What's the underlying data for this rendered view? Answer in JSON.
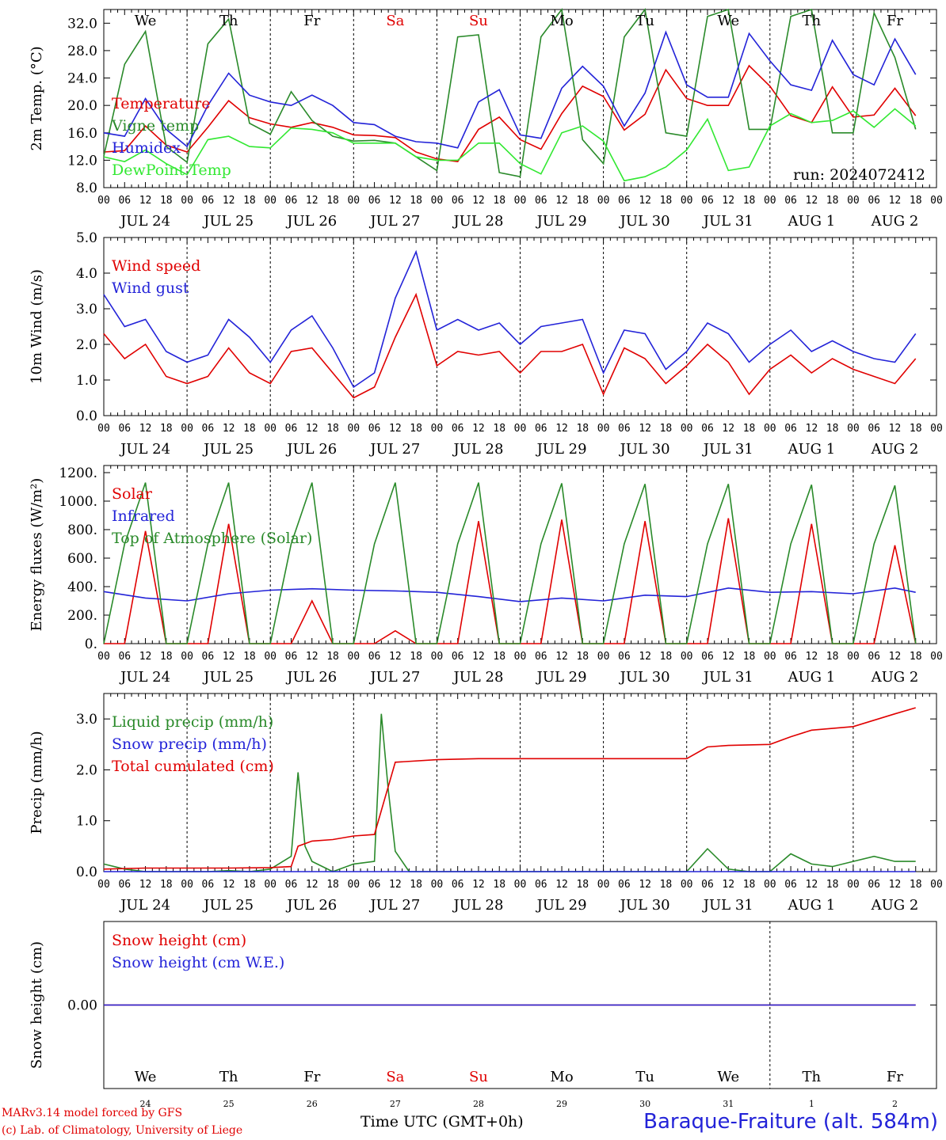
{
  "run_label": "run: 2024072412",
  "day_names": [
    "We",
    "Th",
    "Fr",
    "Sa",
    "Su",
    "Mo",
    "Tu",
    "We",
    "Th",
    "Fr"
  ],
  "day_numbers": [
    "24",
    "25",
    "26",
    "27",
    "28",
    "29",
    "30",
    "31",
    "1",
    "2"
  ],
  "date_labels": [
    "JUL 24",
    "JUL 25",
    "JUL 26",
    "JUL 27",
    "JUL 28",
    "JUL 29",
    "JUL 30",
    "JUL 31",
    "AUG  1",
    "AUG  2"
  ],
  "hour_ticks": [
    "00",
    "06",
    "12",
    "18"
  ],
  "weekend_color": "#e00000",
  "footer": {
    "model": "MARv3.14 model forced by GFS",
    "lab": "(c) Lab. of Climatology, University of Liege",
    "time_label": "Time UTC (GMT+0h)",
    "station": "Baraque-Fraiture (alt. 584m)"
  },
  "chart_data": [
    {
      "type": "line",
      "ylabel": "2m Temp. (°C)",
      "ylim": [
        8,
        34
      ],
      "yticks": [
        "8.0",
        "12.0",
        "16.0",
        "20.0",
        "24.0",
        "28.0",
        "32.0"
      ],
      "grid": false,
      "legend_position": "left",
      "x_unit": "hours since Jul 24 00 UTC",
      "series": [
        {
          "name": "Temperature",
          "color": "#e00000",
          "x": [
            0,
            6,
            12,
            18,
            24,
            30,
            36,
            42,
            48,
            54,
            60,
            66,
            72,
            78,
            84,
            90,
            96,
            102,
            108,
            114,
            120,
            126,
            132,
            138,
            144,
            150,
            156,
            162,
            168,
            174,
            180,
            186,
            192,
            198,
            204,
            210,
            216,
            222,
            228,
            234
          ],
          "values": [
            13.2,
            13.4,
            17,
            14.2,
            13.2,
            16.8,
            20.7,
            18.2,
            17.3,
            16.8,
            17.5,
            16.8,
            15.7,
            15.6,
            15.3,
            13.2,
            12.2,
            11.8,
            16.5,
            18.3,
            15,
            13.6,
            18.8,
            22.8,
            21.3,
            16.4,
            18.7,
            25.2,
            21,
            20,
            20,
            25.8,
            22.8,
            18.5,
            17.5,
            22.7,
            18.3,
            18.6,
            22.5,
            18.5
          ]
        },
        {
          "name": "Vigne temp",
          "color": "#2a8a2a",
          "x": [
            0,
            6,
            12,
            18,
            24,
            30,
            36,
            42,
            48,
            54,
            60,
            66,
            72,
            78,
            84,
            90,
            96,
            102,
            108,
            114,
            120,
            126,
            132,
            138,
            144,
            150,
            156,
            162,
            168,
            174,
            180,
            186,
            192,
            198,
            204,
            210,
            216,
            222,
            228,
            234
          ],
          "values": [
            12.6,
            26,
            30.8,
            14,
            11.7,
            29,
            32.6,
            17.4,
            15.8,
            22,
            17.8,
            15.5,
            14.8,
            14.9,
            14.5,
            12.5,
            10.5,
            30,
            30.3,
            10.2,
            9.6,
            30,
            34,
            15,
            11.5,
            30,
            34,
            16,
            15.5,
            33,
            34,
            16.5,
            16.5,
            33,
            34,
            16,
            16,
            33.5,
            27,
            16.5
          ]
        },
        {
          "name": "Humidex",
          "color": "#2323d8",
          "x": [
            0,
            6,
            12,
            18,
            24,
            30,
            36,
            42,
            48,
            54,
            60,
            66,
            72,
            78,
            84,
            90,
            96,
            102,
            108,
            114,
            120,
            126,
            132,
            138,
            144,
            150,
            156,
            162,
            168,
            174,
            180,
            186,
            192,
            198,
            204,
            210,
            216,
            222,
            228,
            234
          ],
          "values": [
            16,
            15.5,
            21,
            16.5,
            14,
            20,
            24.7,
            21.5,
            20.5,
            20,
            21.5,
            20,
            17.5,
            17.2,
            15.5,
            14.7,
            14.5,
            13.8,
            20.5,
            22.3,
            15.7,
            15.2,
            22.5,
            25.7,
            22.8,
            17,
            21.8,
            30.7,
            23,
            21.2,
            21.2,
            30.5,
            26.5,
            23,
            22.2,
            29.5,
            24.5,
            23,
            29.7,
            24.5
          ]
        },
        {
          "name": "DewPoint Temp",
          "color": "#32e832",
          "x": [
            0,
            6,
            12,
            18,
            24,
            30,
            36,
            42,
            48,
            54,
            60,
            66,
            72,
            78,
            84,
            90,
            96,
            102,
            108,
            114,
            120,
            126,
            132,
            138,
            144,
            150,
            156,
            162,
            168,
            174,
            180,
            186,
            192,
            198,
            204,
            210,
            216,
            222,
            228,
            234
          ],
          "values": [
            12.5,
            11.8,
            13.5,
            11.5,
            9.9,
            15,
            15.5,
            14,
            13.8,
            16.7,
            16.5,
            16,
            14.5,
            14.5,
            14.5,
            12.5,
            12,
            12,
            14.5,
            14.5,
            11.5,
            10,
            16,
            17,
            14.8,
            9,
            9.6,
            11,
            13.5,
            18,
            10.5,
            11,
            17,
            18.8,
            17.5,
            17.8,
            19.2,
            16.8,
            19.5,
            17
          ]
        }
      ]
    },
    {
      "type": "line",
      "ylabel": "10m Wind (m/s)",
      "ylim": [
        0,
        5
      ],
      "yticks": [
        "0.0",
        "1.0",
        "2.0",
        "3.0",
        "4.0",
        "5.0"
      ],
      "grid": false,
      "legend_position": "left",
      "series": [
        {
          "name": "Wind speed",
          "color": "#e00000",
          "x": [
            0,
            6,
            12,
            18,
            24,
            30,
            36,
            42,
            48,
            54,
            60,
            66,
            72,
            78,
            84,
            90,
            96,
            102,
            108,
            114,
            120,
            126,
            132,
            138,
            144,
            150,
            156,
            162,
            168,
            174,
            180,
            186,
            192,
            198,
            204,
            210,
            216,
            222,
            228,
            234
          ],
          "values": [
            2.3,
            1.6,
            2,
            1.1,
            0.9,
            1.1,
            1.9,
            1.2,
            0.9,
            1.8,
            1.9,
            1.2,
            0.5,
            0.8,
            2.2,
            3.4,
            1.4,
            1.8,
            1.7,
            1.8,
            1.2,
            1.8,
            1.8,
            2,
            0.6,
            1.9,
            1.6,
            0.9,
            1.4,
            2,
            1.5,
            0.6,
            1.3,
            1.7,
            1.2,
            1.6,
            1.3,
            1.1,
            0.9,
            1.6
          ]
        },
        {
          "name": "Wind gust",
          "color": "#2323d8",
          "x": [
            0,
            6,
            12,
            18,
            24,
            30,
            36,
            42,
            48,
            54,
            60,
            66,
            72,
            78,
            84,
            90,
            96,
            102,
            108,
            114,
            120,
            126,
            132,
            138,
            144,
            150,
            156,
            162,
            168,
            174,
            180,
            186,
            192,
            198,
            204,
            210,
            216,
            222,
            228,
            234
          ],
          "values": [
            3.4,
            2.5,
            2.7,
            1.8,
            1.5,
            1.7,
            2.7,
            2.2,
            1.5,
            2.4,
            2.8,
            1.9,
            0.8,
            1.2,
            3.3,
            4.6,
            2.4,
            2.7,
            2.4,
            2.6,
            2,
            2.5,
            2.6,
            2.7,
            1.2,
            2.4,
            2.3,
            1.3,
            1.8,
            2.6,
            2.3,
            1.5,
            2,
            2.4,
            1.8,
            2.1,
            1.8,
            1.6,
            1.5,
            2.3
          ]
        }
      ]
    },
    {
      "type": "line",
      "ylabel": "Energy fluxes (W/m²)",
      "ylim": [
        0,
        1250
      ],
      "yticks": [
        "0.",
        "200.",
        "400.",
        "600.",
        "800.",
        "1000.",
        "1200."
      ],
      "grid": false,
      "legend_position": "left",
      "series": [
        {
          "name": "Solar",
          "color": "#e00000",
          "x": [
            0,
            6,
            12,
            18,
            24,
            30,
            36,
            42,
            48,
            54,
            60,
            66,
            72,
            78,
            84,
            90,
            96,
            102,
            108,
            114,
            120,
            126,
            132,
            138,
            144,
            150,
            156,
            162,
            168,
            174,
            180,
            186,
            192,
            198,
            204,
            210,
            216,
            222,
            228,
            234
          ],
          "values": [
            0,
            0,
            790,
            0,
            0,
            0,
            840,
            0,
            0,
            0,
            300,
            0,
            0,
            0,
            90,
            0,
            0,
            0,
            860,
            0,
            0,
            0,
            870,
            0,
            0,
            0,
            860,
            0,
            0,
            0,
            880,
            0,
            0,
            0,
            840,
            0,
            0,
            0,
            690,
            0
          ]
        },
        {
          "name": "Infrared",
          "color": "#2323d8",
          "x": [
            0,
            12,
            24,
            36,
            48,
            60,
            72,
            84,
            96,
            108,
            120,
            132,
            144,
            156,
            168,
            180,
            192,
            204,
            216,
            228,
            234
          ],
          "values": [
            365,
            320,
            300,
            350,
            375,
            385,
            375,
            370,
            360,
            330,
            295,
            320,
            300,
            340,
            330,
            390,
            360,
            365,
            350,
            390,
            360
          ]
        },
        {
          "name": "Top of Atmosphere (Solar)",
          "color": "#2a8a2a",
          "x": [
            0,
            6,
            12,
            18,
            24,
            30,
            36,
            42,
            48,
            54,
            60,
            66,
            72,
            78,
            84,
            90,
            96,
            102,
            108,
            114,
            120,
            126,
            132,
            138,
            144,
            150,
            156,
            162,
            168,
            174,
            180,
            186,
            192,
            198,
            204,
            210,
            216,
            222,
            228,
            234
          ],
          "values": [
            0,
            700,
            1130,
            0,
            0,
            700,
            1130,
            0,
            0,
            700,
            1130,
            0,
            0,
            700,
            1130,
            0,
            0,
            700,
            1130,
            0,
            0,
            700,
            1125,
            0,
            0,
            700,
            1120,
            0,
            0,
            700,
            1120,
            0,
            0,
            700,
            1115,
            0,
            0,
            700,
            1110,
            0
          ]
        }
      ]
    },
    {
      "type": "line",
      "ylabel": "Precip (mm/h)",
      "ylim": [
        0,
        3.5
      ],
      "yticks": [
        "0.0",
        "1.0",
        "2.0",
        "3.0"
      ],
      "grid": false,
      "legend_position": "left",
      "series": [
        {
          "name": "Liquid precip (mm/h)",
          "color": "#2a8a2a",
          "x": [
            0,
            6,
            12,
            18,
            24,
            30,
            36,
            42,
            48,
            54,
            56,
            58,
            60,
            66,
            72,
            78,
            80,
            82,
            84,
            88,
            96,
            102,
            108,
            114,
            120,
            126,
            132,
            138,
            144,
            150,
            156,
            162,
            168,
            174,
            180,
            186,
            192,
            198,
            204,
            210,
            216,
            222,
            228,
            234
          ],
          "values": [
            0.15,
            0.05,
            0,
            0,
            0,
            0,
            0.02,
            0,
            0.05,
            0.3,
            1.95,
            0.5,
            0.2,
            0,
            0.15,
            0.2,
            3.1,
            1.6,
            0.4,
            0,
            0,
            0,
            0,
            0,
            0,
            0,
            0,
            0,
            0,
            0,
            0,
            0,
            0,
            0.45,
            0.05,
            0,
            0,
            0.35,
            0.15,
            0.1,
            0.2,
            0.3,
            0.2,
            0.2
          ]
        },
        {
          "name": "Snow precip (mm/h)",
          "color": "#2323d8",
          "x": [
            0,
            234
          ],
          "values": [
            0,
            0
          ]
        },
        {
          "name": "Total cumulated (cm)",
          "color": "#e00000",
          "x": [
            0,
            12,
            24,
            36,
            48,
            54,
            56,
            60,
            66,
            72,
            78,
            80,
            84,
            96,
            108,
            132,
            156,
            168,
            174,
            180,
            192,
            198,
            204,
            216,
            228,
            234
          ],
          "values": [
            0.05,
            0.07,
            0.07,
            0.07,
            0.08,
            0.1,
            0.5,
            0.6,
            0.63,
            0.7,
            0.73,
            1.2,
            2.15,
            2.2,
            2.22,
            2.22,
            2.22,
            2.22,
            2.45,
            2.48,
            2.5,
            2.65,
            2.78,
            2.85,
            3.1,
            3.22
          ]
        }
      ]
    },
    {
      "type": "line",
      "ylabel": "Snow height (cm)",
      "ylim": [
        -1,
        1
      ],
      "yticks": [
        "0.00"
      ],
      "grid": false,
      "legend_position": "left",
      "series": [
        {
          "name": "Snow height (cm)",
          "color": "#e00000",
          "x": [
            0,
            234
          ],
          "values": [
            0,
            0
          ]
        },
        {
          "name": "Snow height (cm W.E.)",
          "color": "#2323d8",
          "x": [
            0,
            234
          ],
          "values": [
            0,
            0
          ]
        }
      ]
    }
  ]
}
